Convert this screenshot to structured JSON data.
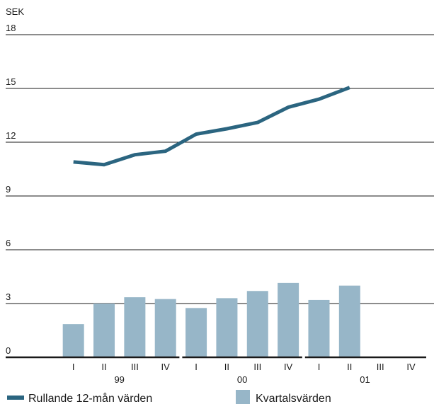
{
  "chart_data": {
    "type": "bar",
    "unit_label": "SEK",
    "ylim": [
      0,
      18
    ],
    "yticks": [
      0,
      3,
      6,
      9,
      12,
      15,
      18
    ],
    "grid": true,
    "categories": [
      "I",
      "II",
      "III",
      "IV",
      "I",
      "II",
      "III",
      "IV",
      "I",
      "II",
      "III",
      "IV"
    ],
    "year_groups": [
      {
        "label": "99",
        "start": 0,
        "end": 3
      },
      {
        "label": "00",
        "start": 4,
        "end": 7
      },
      {
        "label": "01",
        "start": 8,
        "end": 11
      }
    ],
    "series": [
      {
        "name": "Kvartalsvärden",
        "kind": "bar",
        "color": "#97b6c8",
        "values": [
          1.85,
          3.0,
          3.35,
          3.25,
          2.75,
          3.3,
          3.7,
          4.15,
          3.2,
          4.0,
          null,
          null
        ]
      },
      {
        "name": "Rullande 12-mån värden",
        "kind": "line",
        "color": "#2b6580",
        "values": [
          10.9,
          10.75,
          11.3,
          11.5,
          12.45,
          12.75,
          13.1,
          13.95,
          14.4,
          15.05,
          null,
          null
        ]
      }
    ],
    "legend_position": "bottom"
  }
}
